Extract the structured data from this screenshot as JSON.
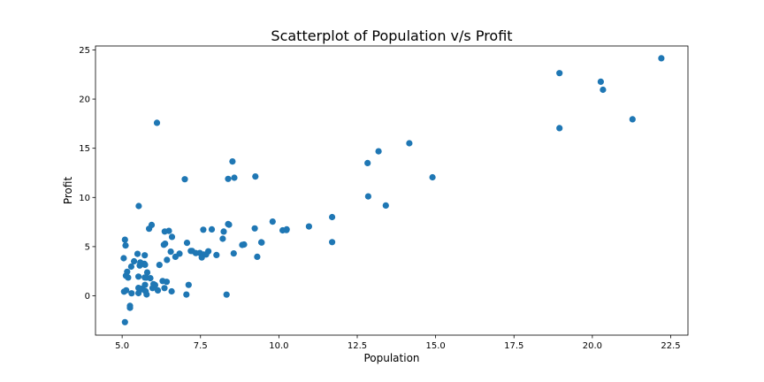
{
  "chart_data": {
    "type": "scatter",
    "title": "Scatterplot of Population v/s Profit",
    "xlabel": "Population",
    "ylabel": "Profit",
    "xlim": [
      4.15,
      23.05
    ],
    "ylim": [
      -4.0,
      25.4
    ],
    "xticks": [
      5.0,
      7.5,
      10.0,
      12.5,
      15.0,
      17.5,
      20.0,
      22.5
    ],
    "xtick_labels": [
      "5.0",
      "7.5",
      "10.0",
      "12.5",
      "15.0",
      "17.5",
      "20.0",
      "22.5"
    ],
    "yticks": [
      0,
      5,
      10,
      15,
      20,
      25
    ],
    "ytick_labels": [
      "0",
      "5",
      "10",
      "15",
      "20",
      "25"
    ],
    "grid": false,
    "marker_color": "#1f77b4",
    "points": [
      [
        6.11,
        17.59
      ],
      [
        5.53,
        9.13
      ],
      [
        8.52,
        13.66
      ],
      [
        7.0,
        11.85
      ],
      [
        5.86,
        6.82
      ],
      [
        8.38,
        11.89
      ],
      [
        7.48,
        4.35
      ],
      [
        8.58,
        12.0
      ],
      [
        6.49,
        6.6
      ],
      [
        5.05,
        3.82
      ],
      [
        5.71,
        3.25
      ],
      [
        14.16,
        15.51
      ],
      [
        5.73,
        3.16
      ],
      [
        8.41,
        7.23
      ],
      [
        5.64,
        0.72
      ],
      [
        5.38,
        3.51
      ],
      [
        6.37,
        5.3
      ],
      [
        5.13,
        0.56
      ],
      [
        6.43,
        3.65
      ],
      [
        7.07,
        5.39
      ],
      [
        6.19,
        3.14
      ],
      [
        20.27,
        21.77
      ],
      [
        5.49,
        4.26
      ],
      [
        6.33,
        5.19
      ],
      [
        5.56,
        3.08
      ],
      [
        18.95,
        22.64
      ],
      [
        12.83,
        13.5
      ],
      [
        10.96,
        7.05
      ],
      [
        13.18,
        14.69
      ],
      [
        22.2,
        24.15
      ],
      [
        5.25,
        -1.22
      ],
      [
        6.59,
        5.99
      ],
      [
        9.25,
        12.13
      ],
      [
        5.19,
        1.85
      ],
      [
        6.36,
        6.54
      ],
      [
        7.19,
        4.56
      ],
      [
        5.72,
        4.12
      ],
      [
        5.58,
        3.39
      ],
      [
        6.42,
        1.42
      ],
      [
        5.12,
        2.04
      ],
      [
        8.38,
        7.29
      ],
      [
        6.83,
        4.28
      ],
      [
        7.05,
        0.13
      ],
      [
        5.8,
        2.37
      ],
      [
        9.44,
        5.44
      ],
      [
        5.72,
        1.86
      ],
      [
        5.06,
        0.42
      ],
      [
        8.56,
        4.31
      ],
      [
        5.78,
        0.14
      ],
      [
        11.7,
        8.0
      ],
      [
        5.52,
        1.95
      ],
      [
        11.7,
        5.46
      ],
      [
        14.9,
        12.05
      ],
      [
        5.09,
        -2.68
      ],
      [
        6.14,
        0.55
      ],
      [
        5.77,
        1.85
      ],
      [
        5.64,
        0.67
      ],
      [
        9.31,
        3.97
      ],
      [
        9.45,
        5.41
      ],
      [
        8.83,
        5.17
      ],
      [
        7.86,
        6.75
      ],
      [
        7.23,
        4.56
      ],
      [
        6.55,
        4.49
      ],
      [
        5.25,
        -1.02
      ],
      [
        5.9,
        1.79
      ],
      [
        5.29,
        2.97
      ],
      [
        6.0,
        1.19
      ],
      [
        6.35,
        0.78
      ],
      [
        6.29,
        1.5
      ],
      [
        5.75,
        0.46
      ],
      [
        5.73,
        1.11
      ],
      [
        13.41,
        9.18
      ],
      [
        5.16,
        2.45
      ],
      [
        7.12,
        1.11
      ],
      [
        7.35,
        4.34
      ],
      [
        5.94,
        7.2
      ],
      [
        8.89,
        5.22
      ],
      [
        5.09,
        5.7
      ],
      [
        5.3,
        0.25
      ],
      [
        5.52,
        0.27
      ],
      [
        5.11,
        5.12
      ],
      [
        10.24,
        6.68
      ],
      [
        9.8,
        7.54
      ],
      [
        12.85,
        10.11
      ],
      [
        7.75,
        4.52
      ],
      [
        7.59,
        6.72
      ],
      [
        8.24,
        6.53
      ],
      [
        7.6,
        4.2
      ],
      [
        5.52,
        0.8
      ],
      [
        10.25,
        6.75
      ],
      [
        5.97,
        0.78
      ],
      [
        9.23,
        6.85
      ],
      [
        8.33,
        0.12
      ],
      [
        6.05,
        1.09
      ],
      [
        7.54,
        3.89
      ],
      [
        6.7,
        3.97
      ],
      [
        7.68,
        4.2
      ],
      [
        8.01,
        4.15
      ],
      [
        18.95,
        17.05
      ],
      [
        21.28,
        17.95
      ],
      [
        20.34,
        20.95
      ],
      [
        8.21,
        5.8
      ],
      [
        10.12,
        6.65
      ],
      [
        6.58,
        0.45
      ]
    ]
  }
}
